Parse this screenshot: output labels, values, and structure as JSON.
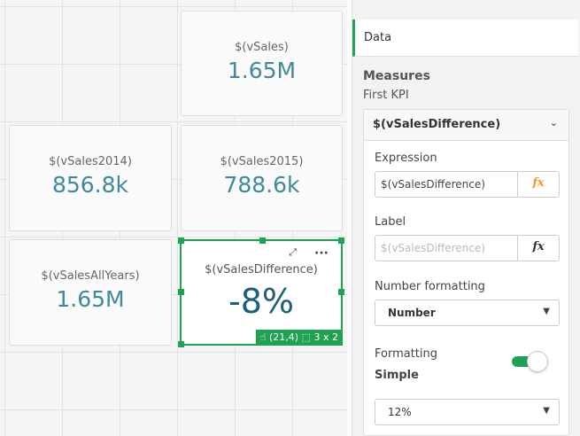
{
  "kpis": [
    {
      "title": "$(vSales)",
      "value": "1.65M"
    },
    {
      "title": "$(vSales2014)",
      "value": "856.8k"
    },
    {
      "title": "$(vSales2015)",
      "value": "788.6k"
    },
    {
      "title": "$(vSalesAllYears)",
      "value": "1.65M"
    },
    {
      "title": "$(vSalesDifference)",
      "value": "-8%"
    }
  ],
  "selected": {
    "position": "(21,4)",
    "size": "3 x 2",
    "more": "···"
  },
  "panel": {
    "tab": "Data",
    "section": "Measures",
    "subsection": "First KPI",
    "measure": {
      "title": "$(vSalesDifference)",
      "expression_label": "Expression",
      "expression_value": "$(vSalesDifference)",
      "label_label": "Label",
      "label_placeholder": "$(vSalesDifference)",
      "fx": "fx",
      "number_formatting_label": "Number formatting",
      "number_formatting_value": "Number",
      "formatting_label": "Formatting",
      "formatting_mode": "Simple",
      "formatting_toggle_on": true,
      "format_value": "12%"
    }
  },
  "colors": {
    "accent": "#1fa253",
    "kpi_value": "#3e8a9b",
    "fx_active": "#f29a1f"
  }
}
